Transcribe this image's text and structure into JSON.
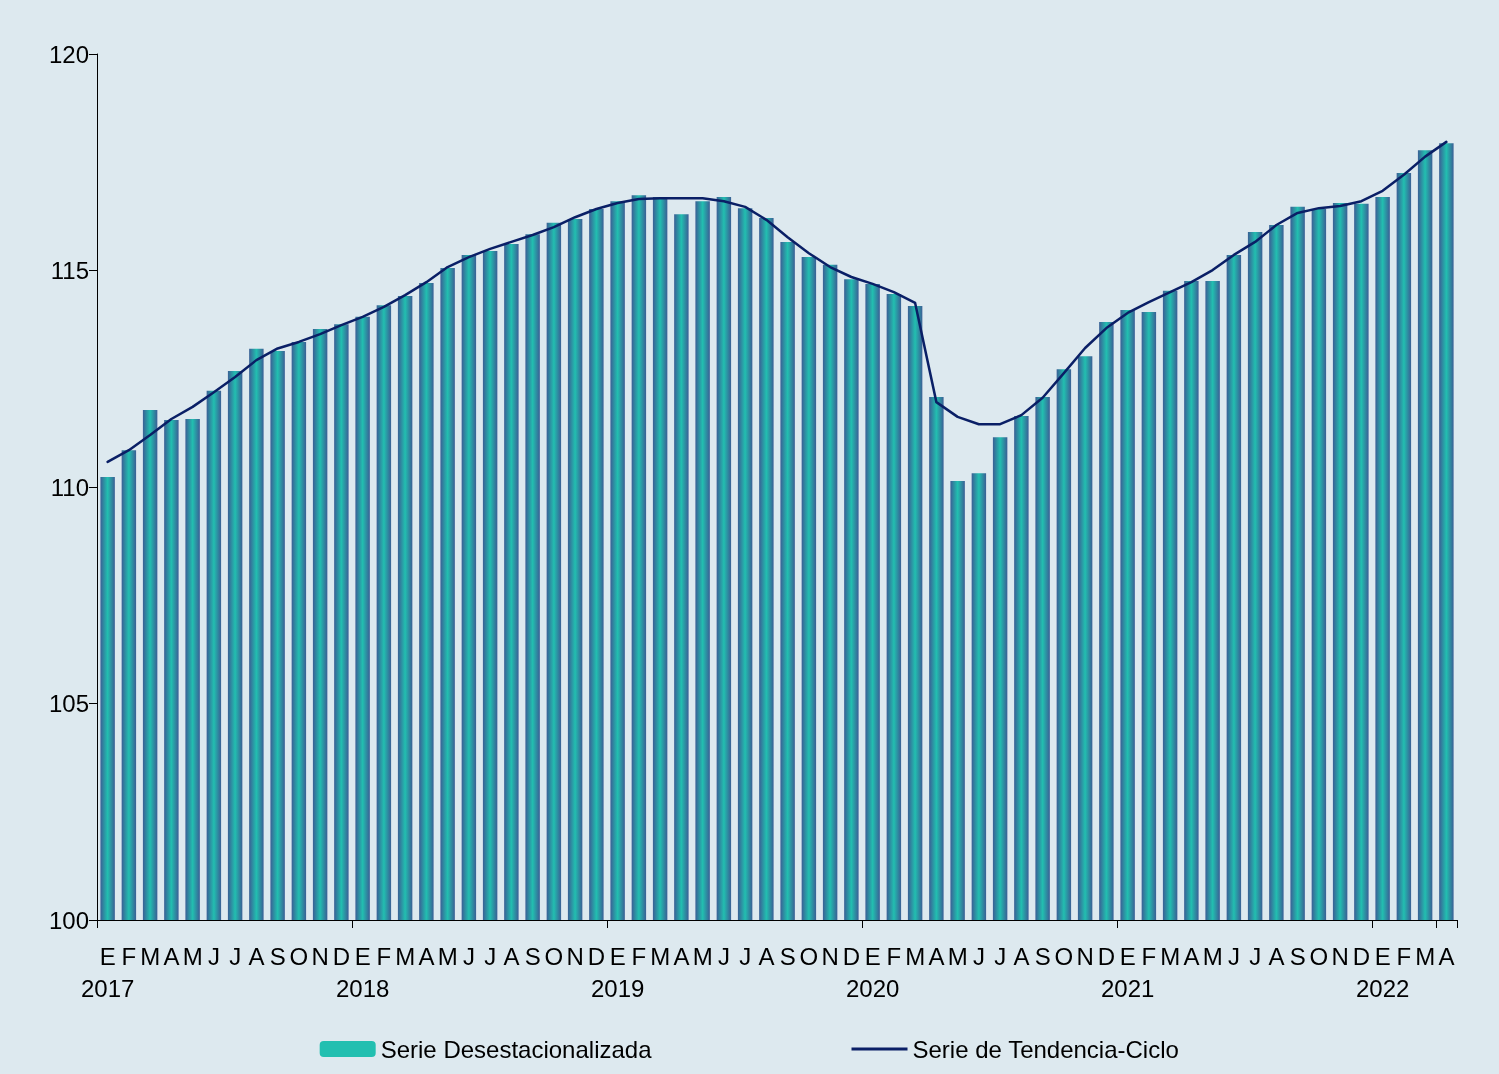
{
  "chart_data": {
    "type": "bar",
    "categories": [
      "E\n2017",
      "F",
      "M",
      "A",
      "M",
      "J",
      "J",
      "A",
      "S",
      "O",
      "N",
      "D",
      "E\n2018",
      "F",
      "M",
      "A",
      "M",
      "J",
      "J",
      "A",
      "S",
      "O",
      "N",
      "D",
      "E\n2019",
      "F",
      "M",
      "A",
      "M",
      "J",
      "J",
      "A",
      "S",
      "O",
      "N",
      "D",
      "E\n2020",
      "F",
      "M",
      "A",
      "M",
      "J",
      "J",
      "A",
      "S",
      "O",
      "N",
      "D",
      "E\n2021",
      "F",
      "M",
      "A",
      "M",
      "J",
      "J",
      "A",
      "S",
      "O",
      "N",
      "D",
      "E\n2022",
      "F",
      "M",
      "A"
    ],
    "series": [
      {
        "name": "Serie Desestacionalizada",
        "color": "#22bfb0",
        "values": [
          110.23,
          110.85,
          111.78,
          111.55,
          111.57,
          112.22,
          112.68,
          113.19,
          113.14,
          113.35,
          113.65,
          113.76,
          113.93,
          114.2,
          114.41,
          114.71,
          115.06,
          115.36,
          115.45,
          115.61,
          115.84,
          116.1,
          116.19,
          116.42,
          116.6,
          116.74,
          116.7,
          116.3,
          116.6,
          116.7,
          116.44,
          116.21,
          115.66,
          115.31,
          115.13,
          114.8,
          114.69,
          114.46,
          114.18,
          112.08,
          110.14,
          110.32,
          111.15,
          111.64,
          112.08,
          112.72,
          113.02,
          113.81,
          114.09,
          114.04,
          114.53,
          114.76,
          114.76,
          115.36,
          115.89,
          116.05,
          116.47,
          116.42,
          116.56,
          116.54,
          116.7,
          117.25,
          117.78,
          117.94
        ]
      },
      {
        "name": "Serie de Tendencia-Ciclo",
        "type": "line",
        "color": "#0a1f66",
        "values": [
          110.58,
          110.85,
          111.2,
          111.57,
          111.85,
          112.19,
          112.54,
          112.93,
          113.2,
          113.35,
          113.53,
          113.74,
          113.93,
          114.16,
          114.43,
          114.73,
          115.08,
          115.31,
          115.5,
          115.66,
          115.82,
          116.0,
          116.23,
          116.42,
          116.56,
          116.65,
          116.67,
          116.67,
          116.67,
          116.6,
          116.47,
          116.17,
          115.77,
          115.4,
          115.08,
          114.85,
          114.69,
          114.5,
          114.25,
          111.96,
          111.62,
          111.45,
          111.45,
          111.66,
          112.06,
          112.63,
          113.21,
          113.67,
          114.02,
          114.27,
          114.5,
          114.73,
          115.01,
          115.36,
          115.66,
          116.05,
          116.33,
          116.44,
          116.49,
          116.6,
          116.84,
          117.21,
          117.63,
          117.97
        ]
      }
    ],
    "ylim": [
      100,
      120
    ],
    "yticks": [
      100,
      105,
      110,
      115,
      120
    ],
    "grid": false,
    "legend": "bottom",
    "marker": "none",
    "line_style": "solid"
  }
}
